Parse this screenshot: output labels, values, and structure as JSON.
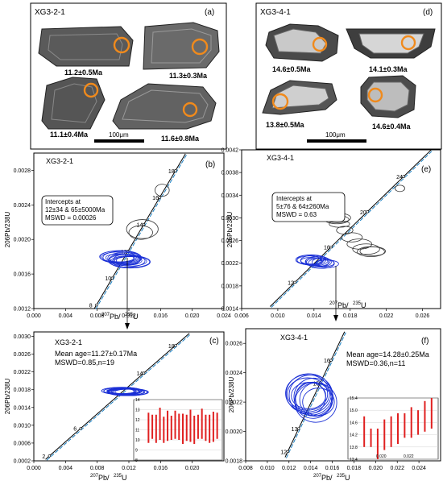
{
  "panel_a": {
    "sample": "XG3-2-1",
    "letter": "(a)",
    "ages": [
      "11.2±0.5Ma",
      "11.3±0.3Ma",
      "11.1±0.4Ma",
      "11.6±0.8Ma"
    ],
    "scale": "100μm"
  },
  "panel_d": {
    "sample": "XG3-4-1",
    "letter": "(d)",
    "ages": [
      "14.6±0.5Ma",
      "14.1±0.3Ma",
      "13.8±0.5Ma",
      "14.6±0.4Ma"
    ],
    "scale": "100μm"
  },
  "colors": {
    "ellipse_blue": "#1a2fd6",
    "ellipse_dark": "#333333",
    "concordia": "#000000",
    "discordia": "#1a7fc1",
    "spot_orange": "#f08a1c",
    "bar_red": "#e02020"
  },
  "chart_data": [
    {
      "id": "b",
      "type": "scatter",
      "title": "XG3-2-1",
      "letter": "(b)",
      "xlabel_main": "Pb/",
      "xlabel_sup1": "207",
      "xlabel_sup2": "235",
      "xlabel_tail": "U",
      "ylabel": "206Pb/238U",
      "xlim": [
        0.0,
        0.024
      ],
      "ylim": [
        0.0012,
        0.003
      ],
      "xticks": [
        "0.000",
        "0.004",
        "0.008",
        "0.012",
        "0.016",
        "0.020",
        "0.024"
      ],
      "yticks": [
        "0.0012",
        "0.0016",
        "0.0020",
        "0.0024",
        "0.0028"
      ],
      "ytick_values": [
        0.0012,
        0.0016,
        0.002,
        0.0024,
        0.0028
      ],
      "concordia_ages": [
        "8",
        "10",
        "12",
        "14",
        "16",
        "18"
      ],
      "annotation": [
        "Intercepts at",
        "12±34 & 65±5000Ma",
        "MSWD = 0.00026"
      ],
      "ellipses_dark": [
        {
          "x": 0.0135,
          "y": 0.00208,
          "rx": 0.0015,
          "ry": 8e-05
        },
        {
          "x": 0.0137,
          "y": 0.00212,
          "rx": 0.002,
          "ry": 0.00011
        },
        {
          "x": 0.0162,
          "y": 0.00257,
          "rx": 0.0009,
          "ry": 7e-05
        }
      ],
      "ellipses_blue_center": {
        "x": 0.0115,
        "y": 0.00177
      },
      "ellipses_blue_count": 14
    },
    {
      "id": "c",
      "type": "scatter",
      "title": "XG3-2-1",
      "letter": "(c)",
      "xlabel_main": "Pb/",
      "xlabel_sup1": "207",
      "xlabel_sup2": "235",
      "xlabel_tail": "U",
      "ylabel": "206Pb/238U",
      "xlim": [
        0.0,
        0.024
      ],
      "ylim": [
        0.0002,
        0.0031
      ],
      "xticks": [
        "0.000",
        "0.004",
        "0.008",
        "0.012",
        "0.016",
        "0.020"
      ],
      "yticks": [
        "0.0002",
        "0.0006",
        "0.0010",
        "0.0014",
        "0.0018",
        "0.0022",
        "0.0026",
        "0.0030"
      ],
      "concordia_ages": [
        "2",
        "6",
        "14",
        "18"
      ],
      "annotation": [
        "Mean age=11.27±0.17Ma",
        "MSWD=0.85,n=19"
      ],
      "inset_yticks": [
        "14",
        "13",
        "12",
        "11",
        "10",
        "9",
        "8"
      ],
      "inset_ylim": [
        8,
        14
      ],
      "inset_bars": [
        {
          "v": 11.2,
          "e": 1.5
        },
        {
          "v": 11.3,
          "e": 1.2
        },
        {
          "v": 11.1,
          "e": 1.4
        },
        {
          "v": 11.6,
          "e": 1.6
        },
        {
          "v": 11.0,
          "e": 1.3
        },
        {
          "v": 11.4,
          "e": 1.5
        },
        {
          "v": 11.2,
          "e": 1.2
        },
        {
          "v": 11.5,
          "e": 1.4
        },
        {
          "v": 11.3,
          "e": 1.3
        },
        {
          "v": 11.1,
          "e": 1.5
        },
        {
          "v": 11.2,
          "e": 1.3
        },
        {
          "v": 11.4,
          "e": 1.6
        },
        {
          "v": 11.0,
          "e": 1.4
        },
        {
          "v": 11.3,
          "e": 1.2
        },
        {
          "v": 11.6,
          "e": 1.5
        },
        {
          "v": 11.2,
          "e": 1.3
        },
        {
          "v": 11.1,
          "e": 1.4
        },
        {
          "v": 11.3,
          "e": 1.5
        },
        {
          "v": 11.4,
          "e": 1.3
        }
      ]
    },
    {
      "id": "e",
      "type": "scatter",
      "title": "XG3-4-1",
      "letter": "(e)",
      "xlabel_main": "Pb/",
      "xlabel_sup1": "207",
      "xlabel_sup2": "235",
      "xlabel_tail": "U",
      "ylabel": "206Pb/238U",
      "xlim": [
        0.006,
        0.028
      ],
      "ylim": [
        0.0014,
        0.0042
      ],
      "xticks": [
        "0.006",
        "0.010",
        "0.014",
        "0.018",
        "0.022",
        "0.026"
      ],
      "yticks": [
        "0.0014",
        "0.0018",
        "0.0022",
        "0.0026",
        "0.0030",
        "0.0034",
        "0.0038",
        "0.0042"
      ],
      "concordia_ages": [
        "12",
        "16",
        "20",
        "24"
      ],
      "annotation": [
        "Intercepts at",
        "5±76 & 64±260Ma",
        "MSWD = 0.63"
      ]
    },
    {
      "id": "f",
      "type": "scatter",
      "title": "XG3-4-1",
      "letter": "(f)",
      "xlabel_main": "Pb/",
      "xlabel_sup1": "207",
      "xlabel_sup2": "235",
      "xlabel_tail": "U",
      "ylabel": "206Pb/238U",
      "xlim": [
        0.008,
        0.026
      ],
      "ylim": [
        0.0018,
        0.0027
      ],
      "xticks": [
        "0.008",
        "0.010",
        "0.012",
        "0.014",
        "0.016",
        "0.018",
        "0.020",
        "0.022",
        "0.024"
      ],
      "yticks": [
        "0.0018",
        "0.0020",
        "0.0022",
        "0.0024",
        "0.0026"
      ],
      "concordia_ages": [
        "12",
        "13",
        "15",
        "16"
      ],
      "annotation": [
        "Mean age=14.28±0.25Ma",
        "MSWD=0.36,n=11"
      ],
      "inset_yticks": [
        "15.4",
        "15.0",
        "14.6",
        "14.2",
        "13.8",
        "13.4"
      ],
      "inset_ylim": [
        13.4,
        15.4
      ],
      "inset_bars": [
        {
          "v": 14.3,
          "e": 0.5
        },
        {
          "v": 14.1,
          "e": 0.3
        },
        {
          "v": 13.9,
          "e": 0.5
        },
        {
          "v": 14.2,
          "e": 0.5
        },
        {
          "v": 14.3,
          "e": 0.5
        },
        {
          "v": 14.4,
          "e": 0.5
        },
        {
          "v": 14.5,
          "e": 0.4
        },
        {
          "v": 14.6,
          "e": 0.5
        },
        {
          "v": 14.6,
          "e": 0.4
        },
        {
          "v": 14.8,
          "e": 0.5
        },
        {
          "v": 14.9,
          "e": 0.5
        }
      ],
      "inset_xticks": [
        "0.020",
        "0.022"
      ]
    }
  ]
}
